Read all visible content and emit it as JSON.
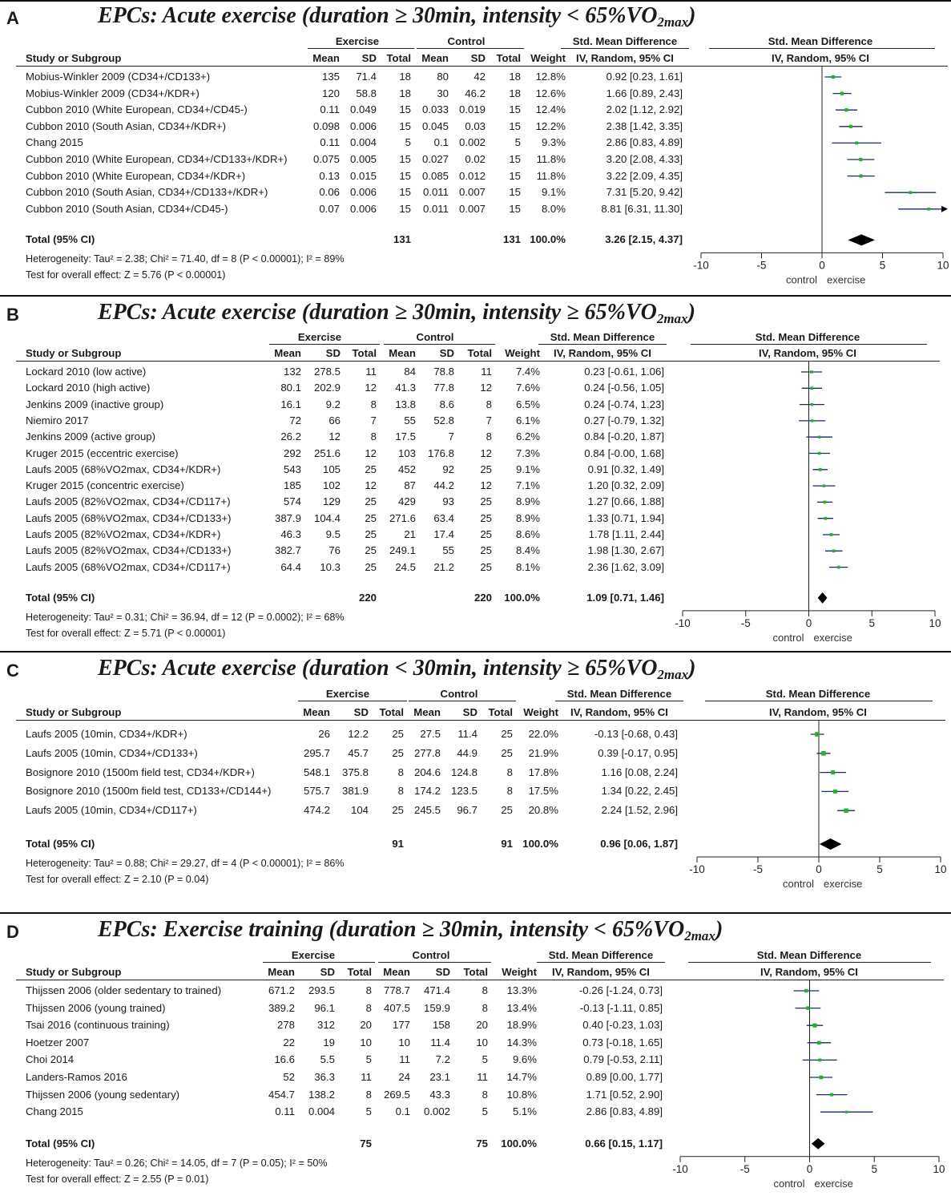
{
  "column_headers": {
    "exercise": "Exercise",
    "control": "Control",
    "smd": "Std. Mean Difference",
    "study": "Study or Subgroup",
    "mean": "Mean",
    "sd": "SD",
    "total": "Total",
    "weight": "Weight",
    "method": "IV, Random, 95% CI",
    "plot_title": "Std. Mean Difference",
    "plot_method": "IV, Random, 95% CI",
    "favours_left": "control",
    "favours_right": "exercise"
  },
  "panels": [
    {
      "letter": "A",
      "title_main": "EPCs: Acute exercise (duration ≥ 30min, intensity < 65%VO",
      "title_sub": "2max",
      "title_close": ")",
      "total_label": "Total (95% CI)",
      "total_exercise": "131",
      "total_control": "131",
      "total_weight": "100.0%",
      "total_ci_text": "3.26 [2.15, 4.37]",
      "heterogeneity": "Heterogeneity: Tau² = 2.38; Chi² = 71.40, df = 8 (P < 0.00001); I² = 89%",
      "overall": "Test for overall effect: Z = 5.76 (P < 0.00001)",
      "rows": [
        {
          "study": "Mobius-Winkler 2009 (CD34+/CD133+)",
          "e_mean": "135",
          "e_sd": "71.4",
          "e_total": "18",
          "c_mean": "80",
          "c_sd": "42",
          "c_total": "18",
          "weight": "12.8%",
          "ci_text": "0.92 [0.23, 1.61]"
        },
        {
          "study": "Mobius-Winkler 2009 (CD34+/KDR+)",
          "e_mean": "120",
          "e_sd": "58.8",
          "e_total": "18",
          "c_mean": "30",
          "c_sd": "46.2",
          "c_total": "18",
          "weight": "12.6%",
          "ci_text": "1.66 [0.89, 2.43]"
        },
        {
          "study": "Cubbon 2010 (White European, CD34+/CD45-)",
          "e_mean": "0.11",
          "e_sd": "0.049",
          "e_total": "15",
          "c_mean": "0.033",
          "c_sd": "0.019",
          "c_total": "15",
          "weight": "12.4%",
          "ci_text": "2.02 [1.12, 2.92]"
        },
        {
          "study": "Cubbon 2010 (South Asian, CD34+/KDR+)",
          "e_mean": "0.098",
          "e_sd": "0.006",
          "e_total": "15",
          "c_mean": "0.045",
          "c_sd": "0.03",
          "c_total": "15",
          "weight": "12.2%",
          "ci_text": "2.38 [1.42, 3.35]"
        },
        {
          "study": "Chang 2015",
          "e_mean": "0.11",
          "e_sd": "0.004",
          "e_total": "5",
          "c_mean": "0.1",
          "c_sd": "0.002",
          "c_total": "5",
          "weight": "9.3%",
          "ci_text": "2.86 [0.83, 4.89]"
        },
        {
          "study": "Cubbon 2010 (White European, CD34+/CD133+/KDR+)",
          "e_mean": "0.075",
          "e_sd": "0.005",
          "e_total": "15",
          "c_mean": "0.027",
          "c_sd": "0.02",
          "c_total": "15",
          "weight": "11.8%",
          "ci_text": "3.20 [2.08, 4.33]"
        },
        {
          "study": "Cubbon 2010 (White European, CD34+/KDR+)",
          "e_mean": "0.13",
          "e_sd": "0.015",
          "e_total": "15",
          "c_mean": "0.085",
          "c_sd": "0.012",
          "c_total": "15",
          "weight": "11.8%",
          "ci_text": "3.22 [2.09, 4.35]"
        },
        {
          "study": "Cubbon 2010 (South Asian, CD34+/CD133+/KDR+)",
          "e_mean": "0.06",
          "e_sd": "0.006",
          "e_total": "15",
          "c_mean": "0.011",
          "c_sd": "0.007",
          "c_total": "15",
          "weight": "9.1%",
          "ci_text": "7.31 [5.20, 9.42]"
        },
        {
          "study": "Cubbon 2010 (South Asian, CD34+/CD45-)",
          "e_mean": "0.07",
          "e_sd": "0.006",
          "e_total": "15",
          "c_mean": "0.011",
          "c_sd": "0.007",
          "c_total": "15",
          "weight": "8.0%",
          "ci_text": "8.81 [6.31, 11.30]"
        }
      ]
    },
    {
      "letter": "B",
      "title_main": "EPCs: Acute exercise (duration ≥ 30min, intensity ≥ 65%VO",
      "title_sub": "2max",
      "title_close": ")",
      "total_label": "Total (95% CI)",
      "total_exercise": "220",
      "total_control": "220",
      "total_weight": "100.0%",
      "total_ci_text": "1.09 [0.71, 1.46]",
      "heterogeneity": "Heterogeneity: Tau² = 0.31; Chi² = 36.94, df = 12 (P = 0.0002); I² = 68%",
      "overall": "Test for overall effect: Z = 5.71 (P < 0.00001)",
      "rows": [
        {
          "study": "Lockard 2010 (low active)",
          "e_mean": "132",
          "e_sd": "278.5",
          "e_total": "11",
          "c_mean": "84",
          "c_sd": "78.8",
          "c_total": "11",
          "weight": "7.4%",
          "ci_text": "0.23 [-0.61, 1.06]"
        },
        {
          "study": "Lockard 2010 (high active)",
          "e_mean": "80.1",
          "e_sd": "202.9",
          "e_total": "12",
          "c_mean": "41.3",
          "c_sd": "77.8",
          "c_total": "12",
          "weight": "7.6%",
          "ci_text": "0.24 [-0.56, 1.05]"
        },
        {
          "study": "Jenkins 2009 (inactive group)",
          "e_mean": "16.1",
          "e_sd": "9.2",
          "e_total": "8",
          "c_mean": "13.8",
          "c_sd": "8.6",
          "c_total": "8",
          "weight": "6.5%",
          "ci_text": "0.24 [-0.74, 1.23]"
        },
        {
          "study": "Niemiro 2017",
          "e_mean": "72",
          "e_sd": "66",
          "e_total": "7",
          "c_mean": "55",
          "c_sd": "52.8",
          "c_total": "7",
          "weight": "6.1%",
          "ci_text": "0.27 [-0.79, 1.32]"
        },
        {
          "study": "Jenkins 2009 (active group)",
          "e_mean": "26.2",
          "e_sd": "12",
          "e_total": "8",
          "c_mean": "17.5",
          "c_sd": "7",
          "c_total": "8",
          "weight": "6.2%",
          "ci_text": "0.84 [-0.20, 1.87]"
        },
        {
          "study": "Kruger 2015 (eccentric exercise)",
          "e_mean": "292",
          "e_sd": "251.6",
          "e_total": "12",
          "c_mean": "103",
          "c_sd": "176.8",
          "c_total": "12",
          "weight": "7.3%",
          "ci_text": "0.84 [-0.00, 1.68]"
        },
        {
          "study": "Laufs 2005 (68%VO2max, CD34+/KDR+)",
          "e_mean": "543",
          "e_sd": "105",
          "e_total": "25",
          "c_mean": "452",
          "c_sd": "92",
          "c_total": "25",
          "weight": "9.1%",
          "ci_text": "0.91 [0.32, 1.49]"
        },
        {
          "study": "Kruger 2015 (concentric exercise)",
          "e_mean": "185",
          "e_sd": "102",
          "e_total": "12",
          "c_mean": "87",
          "c_sd": "44.2",
          "c_total": "12",
          "weight": "7.1%",
          "ci_text": "1.20 [0.32, 2.09]"
        },
        {
          "study": "Laufs 2005 (82%VO2max, CD34+/CD117+)",
          "e_mean": "574",
          "e_sd": "129",
          "e_total": "25",
          "c_mean": "429",
          "c_sd": "93",
          "c_total": "25",
          "weight": "8.9%",
          "ci_text": "1.27 [0.66, 1.88]"
        },
        {
          "study": "Laufs 2005 (68%VO2max, CD34+/CD133+)",
          "e_mean": "387.9",
          "e_sd": "104.4",
          "e_total": "25",
          "c_mean": "271.6",
          "c_sd": "63.4",
          "c_total": "25",
          "weight": "8.9%",
          "ci_text": "1.33 [0.71, 1.94]"
        },
        {
          "study": "Laufs 2005 (82%VO2max, CD34+/KDR+)",
          "e_mean": "46.3",
          "e_sd": "9.5",
          "e_total": "25",
          "c_mean": "21",
          "c_sd": "17.4",
          "c_total": "25",
          "weight": "8.6%",
          "ci_text": "1.78 [1.11, 2.44]"
        },
        {
          "study": "Laufs 2005 (82%VO2max, CD34+/CD133+)",
          "e_mean": "382.7",
          "e_sd": "76",
          "e_total": "25",
          "c_mean": "249.1",
          "c_sd": "55",
          "c_total": "25",
          "weight": "8.4%",
          "ci_text": "1.98 [1.30, 2.67]"
        },
        {
          "study": "Laufs 2005 (68%VO2max, CD34+/CD117+)",
          "e_mean": "64.4",
          "e_sd": "10.3",
          "e_total": "25",
          "c_mean": "24.5",
          "c_sd": "21.2",
          "c_total": "25",
          "weight": "8.1%",
          "ci_text": "2.36 [1.62, 3.09]"
        }
      ]
    },
    {
      "letter": "C",
      "title_main": "EPCs: Acute exercise (duration < 30min, intensity ≥ 65%VO",
      "title_sub": "2max",
      "title_close": ")",
      "total_label": "Total (95% CI)",
      "total_exercise": "91",
      "total_control": "91",
      "total_weight": "100.0%",
      "total_ci_text": "0.96 [0.06, 1.87]",
      "heterogeneity": "Heterogeneity: Tau² = 0.88; Chi² = 29.27, df = 4 (P < 0.00001); I² = 86%",
      "overall": "Test for overall effect: Z = 2.10 (P = 0.04)",
      "rows": [
        {
          "study": "Laufs 2005 (10min, CD34+/KDR+)",
          "e_mean": "26",
          "e_sd": "12.2",
          "e_total": "25",
          "c_mean": "27.5",
          "c_sd": "11.4",
          "c_total": "25",
          "weight": "22.0%",
          "ci_text": "-0.13 [-0.68, 0.43]"
        },
        {
          "study": "Laufs 2005 (10min, CD34+/CD133+)",
          "e_mean": "295.7",
          "e_sd": "45.7",
          "e_total": "25",
          "c_mean": "277.8",
          "c_sd": "44.9",
          "c_total": "25",
          "weight": "21.9%",
          "ci_text": "0.39 [-0.17, 0.95]"
        },
        {
          "study": "Bosignore 2010 (1500m field test, CD34+/KDR+)",
          "e_mean": "548.1",
          "e_sd": "375.8",
          "e_total": "8",
          "c_mean": "204.6",
          "c_sd": "124.8",
          "c_total": "8",
          "weight": "17.8%",
          "ci_text": "1.16 [0.08, 2.24]"
        },
        {
          "study": "Bosignore 2010 (1500m field test, CD133+/CD144+)",
          "e_mean": "575.7",
          "e_sd": "381.9",
          "e_total": "8",
          "c_mean": "174.2",
          "c_sd": "123.5",
          "c_total": "8",
          "weight": "17.5%",
          "ci_text": "1.34 [0.22, 2.45]"
        },
        {
          "study": "Laufs 2005 (10min, CD34+/CD117+)",
          "e_mean": "474.2",
          "e_sd": "104",
          "e_total": "25",
          "c_mean": "245.5",
          "c_sd": "96.7",
          "c_total": "25",
          "weight": "20.8%",
          "ci_text": "2.24 [1.52, 2.96]"
        }
      ]
    },
    {
      "letter": "D",
      "title_main": "EPCs:  Exercise training (duration ≥ 30min, intensity < 65%VO",
      "title_sub": "2max",
      "title_close": ")",
      "total_label": "Total (95% CI)",
      "total_exercise": "75",
      "total_control": "75",
      "total_weight": "100.0%",
      "total_ci_text": "0.66 [0.15, 1.17]",
      "heterogeneity": "Heterogeneity: Tau² = 0.26; Chi² = 14.05, df = 7 (P = 0.05); I² = 50%",
      "overall": "Test for overall effect: Z = 2.55 (P = 0.01)",
      "rows": [
        {
          "study": "Thijssen 2006 (older sedentary to trained)",
          "e_mean": "671.2",
          "e_sd": "293.5",
          "e_total": "8",
          "c_mean": "778.7",
          "c_sd": "471.4",
          "c_total": "8",
          "weight": "13.3%",
          "ci_text": "-0.26 [-1.24, 0.73]"
        },
        {
          "study": "Thijssen 2006 (young trained)",
          "e_mean": "389.2",
          "e_sd": "96.1",
          "e_total": "8",
          "c_mean": "407.5",
          "c_sd": "159.9",
          "c_total": "8",
          "weight": "13.4%",
          "ci_text": "-0.13 [-1.11, 0.85]"
        },
        {
          "study": "Tsai 2016 (continuous training)",
          "e_mean": "278",
          "e_sd": "312",
          "e_total": "20",
          "c_mean": "177",
          "c_sd": "158",
          "c_total": "20",
          "weight": "18.9%",
          "ci_text": "0.40 [-0.23, 1.03]"
        },
        {
          "study": "Hoetzer 2007",
          "e_mean": "22",
          "e_sd": "19",
          "e_total": "10",
          "c_mean": "10",
          "c_sd": "11.4",
          "c_total": "10",
          "weight": "14.3%",
          "ci_text": "0.73 [-0.18, 1.65]"
        },
        {
          "study": "Choi 2014",
          "e_mean": "16.6",
          "e_sd": "5.5",
          "e_total": "5",
          "c_mean": "11",
          "c_sd": "7.2",
          "c_total": "5",
          "weight": "9.6%",
          "ci_text": "0.79 [-0.53, 2.11]"
        },
        {
          "study": "Landers-Ramos 2016",
          "e_mean": "52",
          "e_sd": "36.3",
          "e_total": "11",
          "c_mean": "24",
          "c_sd": "23.1",
          "c_total": "11",
          "weight": "14.7%",
          "ci_text": "0.89 [0.00, 1.77]"
        },
        {
          "study": "Thijssen 2006 (young sedentary)",
          "e_mean": "454.7",
          "e_sd": "138.2",
          "e_total": "8",
          "c_mean": "269.5",
          "c_sd": "43.3",
          "c_total": "8",
          "weight": "10.8%",
          "ci_text": "1.71 [0.52, 2.90]"
        },
        {
          "study": "Chang 2015",
          "e_mean": "0.11",
          "e_sd": "0.004",
          "e_total": "5",
          "c_mean": "0.1",
          "c_sd": "0.002",
          "c_total": "5",
          "weight": "5.1%",
          "ci_text": "2.86 [0.83, 4.89]"
        }
      ]
    }
  ],
  "chart_data": [
    {
      "type": "forest",
      "panel": "A",
      "xlim": [
        -10,
        10
      ],
      "ticks": [
        -10,
        -5,
        0,
        5,
        10
      ],
      "xlabel_left": "control",
      "xlabel_right": "exercise",
      "series": [
        {
          "est": 0.92,
          "lo": 0.23,
          "hi": 1.61,
          "weight": 12.8
        },
        {
          "est": 1.66,
          "lo": 0.89,
          "hi": 2.43,
          "weight": 12.6
        },
        {
          "est": 2.02,
          "lo": 1.12,
          "hi": 2.92,
          "weight": 12.4
        },
        {
          "est": 2.38,
          "lo": 1.42,
          "hi": 3.35,
          "weight": 12.2
        },
        {
          "est": 2.86,
          "lo": 0.83,
          "hi": 4.89,
          "weight": 9.3
        },
        {
          "est": 3.2,
          "lo": 2.08,
          "hi": 4.33,
          "weight": 11.8
        },
        {
          "est": 3.22,
          "lo": 2.09,
          "hi": 4.35,
          "weight": 11.8
        },
        {
          "est": 7.31,
          "lo": 5.2,
          "hi": 9.42,
          "weight": 9.1
        },
        {
          "est": 8.81,
          "lo": 6.31,
          "hi": 11.3,
          "weight": 8.0
        }
      ],
      "total": {
        "est": 3.26,
        "lo": 2.15,
        "hi": 4.37
      }
    },
    {
      "type": "forest",
      "panel": "B",
      "xlim": [
        -10,
        10
      ],
      "ticks": [
        -10,
        -5,
        0,
        5,
        10
      ],
      "xlabel_left": "control",
      "xlabel_right": "exercise",
      "series": [
        {
          "est": 0.23,
          "lo": -0.61,
          "hi": 1.06,
          "weight": 7.4
        },
        {
          "est": 0.24,
          "lo": -0.56,
          "hi": 1.05,
          "weight": 7.6
        },
        {
          "est": 0.24,
          "lo": -0.74,
          "hi": 1.23,
          "weight": 6.5
        },
        {
          "est": 0.27,
          "lo": -0.79,
          "hi": 1.32,
          "weight": 6.1
        },
        {
          "est": 0.84,
          "lo": -0.2,
          "hi": 1.87,
          "weight": 6.2
        },
        {
          "est": 0.84,
          "lo": -0.0,
          "hi": 1.68,
          "weight": 7.3
        },
        {
          "est": 0.91,
          "lo": 0.32,
          "hi": 1.49,
          "weight": 9.1
        },
        {
          "est": 1.2,
          "lo": 0.32,
          "hi": 2.09,
          "weight": 7.1
        },
        {
          "est": 1.27,
          "lo": 0.66,
          "hi": 1.88,
          "weight": 8.9
        },
        {
          "est": 1.33,
          "lo": 0.71,
          "hi": 1.94,
          "weight": 8.9
        },
        {
          "est": 1.78,
          "lo": 1.11,
          "hi": 2.44,
          "weight": 8.6
        },
        {
          "est": 1.98,
          "lo": 1.3,
          "hi": 2.67,
          "weight": 8.4
        },
        {
          "est": 2.36,
          "lo": 1.62,
          "hi": 3.09,
          "weight": 8.1
        }
      ],
      "total": {
        "est": 1.09,
        "lo": 0.71,
        "hi": 1.46
      }
    },
    {
      "type": "forest",
      "panel": "C",
      "xlim": [
        -10,
        10
      ],
      "ticks": [
        -10,
        -5,
        0,
        5,
        10
      ],
      "xlabel_left": "control",
      "xlabel_right": "exercise",
      "series": [
        {
          "est": -0.13,
          "lo": -0.68,
          "hi": 0.43,
          "weight": 22.0
        },
        {
          "est": 0.39,
          "lo": -0.17,
          "hi": 0.95,
          "weight": 21.9
        },
        {
          "est": 1.16,
          "lo": 0.08,
          "hi": 2.24,
          "weight": 17.8
        },
        {
          "est": 1.34,
          "lo": 0.22,
          "hi": 2.45,
          "weight": 17.5
        },
        {
          "est": 2.24,
          "lo": 1.52,
          "hi": 2.96,
          "weight": 20.8
        }
      ],
      "total": {
        "est": 0.96,
        "lo": 0.06,
        "hi": 1.87
      }
    },
    {
      "type": "forest",
      "panel": "D",
      "xlim": [
        -10,
        10
      ],
      "ticks": [
        -10,
        -5,
        0,
        5,
        10
      ],
      "xlabel_left": "control",
      "xlabel_right": "exercise",
      "series": [
        {
          "est": -0.26,
          "lo": -1.24,
          "hi": 0.73,
          "weight": 13.3
        },
        {
          "est": -0.13,
          "lo": -1.11,
          "hi": 0.85,
          "weight": 13.4
        },
        {
          "est": 0.4,
          "lo": -0.23,
          "hi": 1.03,
          "weight": 18.9
        },
        {
          "est": 0.73,
          "lo": -0.18,
          "hi": 1.65,
          "weight": 14.3
        },
        {
          "est": 0.79,
          "lo": -0.53,
          "hi": 2.11,
          "weight": 9.6
        },
        {
          "est": 0.89,
          "lo": 0.0,
          "hi": 1.77,
          "weight": 14.7
        },
        {
          "est": 1.71,
          "lo": 0.52,
          "hi": 2.9,
          "weight": 10.8
        },
        {
          "est": 2.86,
          "lo": 0.83,
          "hi": 4.89,
          "weight": 5.1
        }
      ],
      "total": {
        "est": 0.66,
        "lo": 0.15,
        "hi": 1.17
      }
    }
  ],
  "colors": {
    "marker": "#22b322",
    "ci_line": "#1a2a6c",
    "diamond": "#000000",
    "text": "#1a1a1a"
  }
}
